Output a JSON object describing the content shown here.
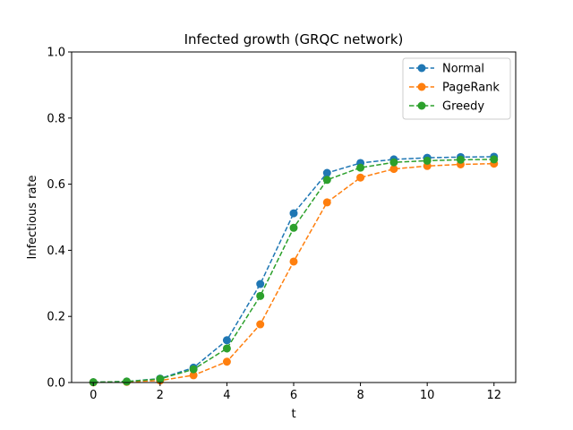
{
  "chart_data": {
    "type": "line",
    "title": "Infected growth (GRQC network)",
    "xlabel": "t",
    "ylabel": "Infectious rate",
    "xlim": [
      -0.65,
      12.65
    ],
    "ylim": [
      0.0,
      1.0
    ],
    "xticks": [
      0,
      2,
      4,
      6,
      8,
      10,
      12
    ],
    "yticks": [
      0.0,
      0.2,
      0.4,
      0.6,
      0.8,
      1.0
    ],
    "xtick_labels": [
      "0",
      "2",
      "4",
      "6",
      "8",
      "10",
      "12"
    ],
    "ytick_labels": [
      "0.0",
      "0.2",
      "0.4",
      "0.6",
      "0.8",
      "1.0"
    ],
    "grid": false,
    "legend_position": "top-right",
    "x": [
      0,
      1,
      2,
      3,
      4,
      5,
      6,
      7,
      8,
      9,
      10,
      11,
      12
    ],
    "series": [
      {
        "name": "Normal",
        "color": "#1f77b4",
        "line_style": "dashed",
        "marker": "circle",
        "values": [
          0.001,
          0.003,
          0.012,
          0.045,
          0.128,
          0.298,
          0.512,
          0.634,
          0.664,
          0.675,
          0.68,
          0.682,
          0.683
        ]
      },
      {
        "name": "PageRank",
        "color": "#ff7f0e",
        "line_style": "dashed",
        "marker": "circle",
        "values": [
          0.0005,
          0.002,
          0.006,
          0.022,
          0.063,
          0.176,
          0.366,
          0.545,
          0.62,
          0.646,
          0.655,
          0.66,
          0.662
        ]
      },
      {
        "name": "Greedy",
        "color": "#2ca02c",
        "line_style": "dashed",
        "marker": "circle",
        "values": [
          0.001,
          0.003,
          0.011,
          0.04,
          0.103,
          0.262,
          0.468,
          0.613,
          0.65,
          0.666,
          0.671,
          0.674,
          0.675
        ]
      }
    ]
  }
}
